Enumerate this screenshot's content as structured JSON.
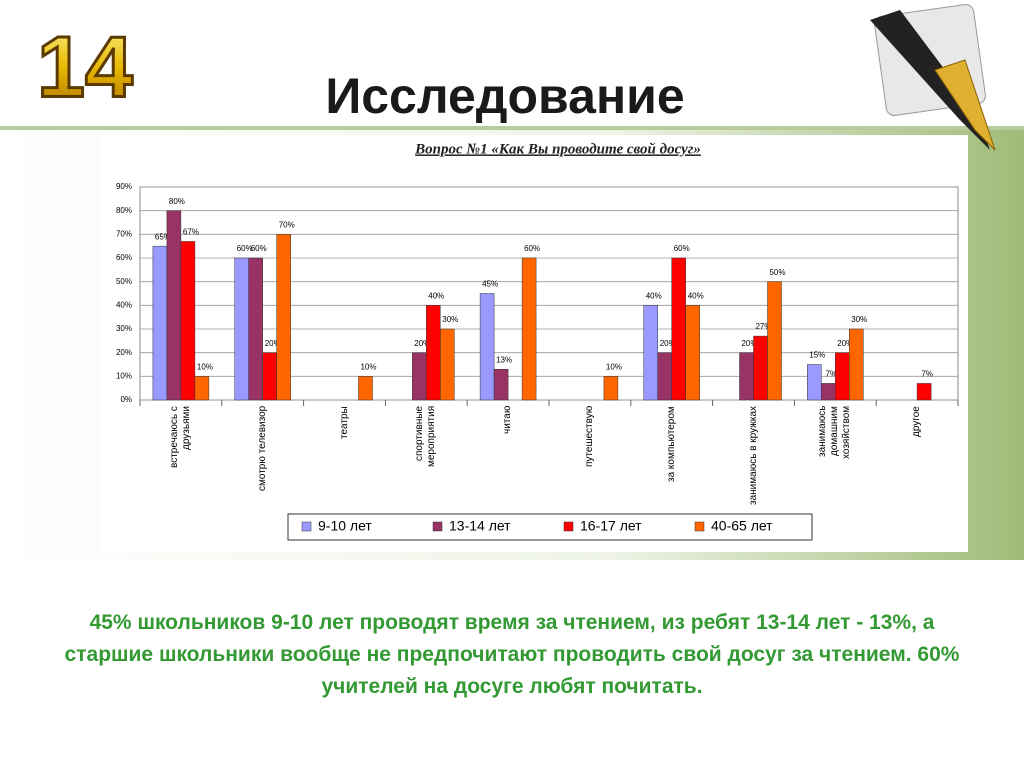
{
  "slide": {
    "number": "14",
    "title": "Исследование",
    "caption": "45% школьников 9-10 лет проводят время за чтением,  из  ребят 13-14 лет - 13%, а старшие школьники вообще не предпочитают проводить свой досуг за чтением. 60% учителей на досуге любят почитать."
  },
  "chart_data": {
    "type": "bar",
    "title": "Вопрос №1 «Как Вы проводите свой досуг»",
    "categories": [
      "встречаюсь с друзьями",
      "смотрю телевизор",
      "театры",
      "спортивные мероприятия",
      "читаю",
      "путешествую",
      "за компьютером",
      "занимаюсь в кружках",
      "занимаюсь домашним хозяйством",
      "другое"
    ],
    "series": [
      {
        "name": "9-10 лет",
        "color": "#9999ff",
        "values": [
          65,
          60,
          null,
          null,
          45,
          null,
          40,
          null,
          15,
          null
        ],
        "value_labels": [
          "65%",
          "60%",
          null,
          null,
          "45%",
          null,
          "40%",
          null,
          "15%",
          null
        ]
      },
      {
        "name": "13-14 лет",
        "color": "#993366",
        "values": [
          80,
          60,
          null,
          20,
          13,
          null,
          20,
          20,
          7,
          null
        ],
        "value_labels": [
          "80%",
          "60%",
          null,
          "20%",
          "13%",
          null,
          "20%",
          "20%",
          "7%",
          null
        ]
      },
      {
        "name": "16-17 лет",
        "color": "#ff0000",
        "values": [
          67,
          20,
          null,
          40,
          null,
          null,
          60,
          27,
          20,
          7
        ],
        "value_labels": [
          "67%",
          "20%",
          null,
          "40%",
          null,
          null,
          "60%",
          "27%",
          "20%",
          "7%"
        ]
      },
      {
        "name": "40-65 лет",
        "color": "#ff6600",
        "values": [
          10,
          70,
          10,
          30,
          60,
          10,
          40,
          50,
          30,
          null
        ],
        "value_labels": [
          "10%",
          "70%",
          "10%",
          "30%",
          "60%",
          "10%",
          "40%",
          "50%",
          "30%",
          null
        ]
      }
    ],
    "ylim": [
      0,
      90
    ],
    "yticks": [
      {
        "value": 0,
        "label": "0%"
      },
      {
        "value": 10,
        "label": "10%"
      },
      {
        "value": 20,
        "label": "20%"
      },
      {
        "value": 30,
        "label": "30%"
      },
      {
        "value": 40,
        "label": "40%"
      },
      {
        "value": 50,
        "label": "50%"
      },
      {
        "value": 60,
        "label": "60%"
      },
      {
        "value": 70,
        "label": "70%"
      },
      {
        "value": 80,
        "label": "80%"
      },
      {
        "value": 90,
        "label": "90%"
      }
    ],
    "grid": true,
    "legend": "bottom"
  }
}
